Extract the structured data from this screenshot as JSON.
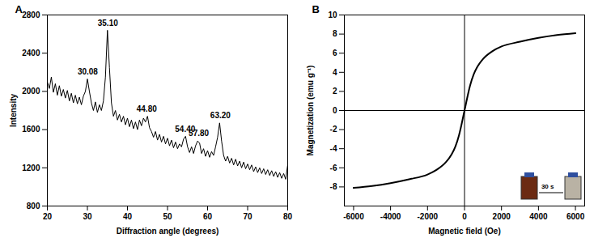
{
  "chart_data": [
    {
      "type": "line",
      "title": "A",
      "x_label": "Diffraction angle (degrees)",
      "y_label": "Intensity",
      "color": "#000000",
      "x": [
        20,
        20.5,
        21,
        21.5,
        22,
        22.5,
        23,
        23.5,
        24,
        24.5,
        25,
        25.5,
        26,
        26.5,
        27,
        27.5,
        28,
        28.5,
        29,
        29.5,
        30,
        30.5,
        31,
        31.5,
        32,
        32.5,
        33,
        33.5,
        34,
        34.5,
        35,
        35.5,
        36,
        36.5,
        37,
        37.5,
        38,
        38.5,
        39,
        39.5,
        40,
        40.5,
        41,
        41.5,
        42,
        42.5,
        43,
        43.5,
        44,
        44.5,
        45,
        45.5,
        46,
        46.5,
        47,
        47.5,
        48,
        48.5,
        49,
        49.5,
        50,
        50.5,
        51,
        51.5,
        52,
        52.5,
        53,
        53.5,
        54,
        54.5,
        55,
        55.5,
        56,
        56.5,
        57,
        57.5,
        58,
        58.5,
        59,
        59.5,
        60,
        60.5,
        61,
        61.5,
        62,
        62.5,
        63,
        63.5,
        64,
        64.5,
        65,
        65.5,
        66,
        66.5,
        67,
        67.5,
        68,
        68.5,
        69,
        69.5,
        70,
        70.5,
        71,
        71.5,
        72,
        72.5,
        73,
        73.5,
        74,
        74.5,
        75,
        75.5,
        76,
        76.5,
        77,
        77.5,
        78,
        78.5,
        79,
        79.5,
        80
      ],
      "values": [
        2100,
        2030,
        2150,
        1990,
        2080,
        1960,
        2060,
        1950,
        2020,
        1930,
        2010,
        1900,
        1980,
        1880,
        1960,
        1870,
        1940,
        1860,
        1950,
        2000,
        2130,
        2000,
        1880,
        1800,
        1890,
        1780,
        1860,
        1800,
        1900,
        2150,
        2640,
        2250,
        1880,
        1740,
        1800,
        1700,
        1760,
        1680,
        1740,
        1650,
        1720,
        1630,
        1700,
        1610,
        1680,
        1600,
        1700,
        1640,
        1720,
        1680,
        1740,
        1620,
        1580,
        1520,
        1580,
        1490,
        1550,
        1470,
        1530,
        1450,
        1510,
        1430,
        1490,
        1410,
        1470,
        1400,
        1450,
        1420,
        1500,
        1530,
        1420,
        1360,
        1420,
        1350,
        1430,
        1480,
        1460,
        1350,
        1400,
        1320,
        1380,
        1310,
        1370,
        1330,
        1420,
        1520,
        1670,
        1480,
        1330,
        1270,
        1320,
        1250,
        1300,
        1230,
        1290,
        1220,
        1270,
        1200,
        1260,
        1190,
        1240,
        1180,
        1230,
        1160,
        1210,
        1150,
        1200,
        1140,
        1190,
        1130,
        1180,
        1120,
        1170,
        1110,
        1160,
        1100,
        1150,
        1090,
        1140,
        1080,
        1230
      ],
      "xlim": [
        20,
        80
      ],
      "xticks": [
        20,
        30,
        40,
        50,
        60,
        70,
        80
      ],
      "ylim": [
        800,
        2800
      ],
      "yticks": [
        800,
        1200,
        1600,
        2000,
        2400,
        2800
      ],
      "annotations": [
        {
          "x": 30.08,
          "y": 2130,
          "label": "30.08"
        },
        {
          "x": 35.1,
          "y": 2640,
          "label": "35.10"
        },
        {
          "x": 44.8,
          "y": 1740,
          "label": "44.80"
        },
        {
          "x": 54.4,
          "y": 1530,
          "label": "54.40"
        },
        {
          "x": 57.8,
          "y": 1480,
          "label": "57.80"
        },
        {
          "x": 63.2,
          "y": 1670,
          "label": "63.20"
        }
      ]
    },
    {
      "type": "line",
      "title": "B",
      "x_label": "Magnetic field (Oe)",
      "y_label": "Magnetization (emu g⁻¹)",
      "color": "#000000",
      "x": [
        -6000,
        -5000,
        -4000,
        -3000,
        -2000,
        -1500,
        -1000,
        -700,
        -500,
        -300,
        -200,
        -100,
        0,
        100,
        200,
        300,
        500,
        700,
        1000,
        1500,
        2000,
        3000,
        4000,
        5000,
        6000
      ],
      "values": [
        -8.1,
        -7.9,
        -7.6,
        -7.2,
        -6.7,
        -6.2,
        -5.4,
        -4.6,
        -3.8,
        -2.6,
        -1.8,
        -0.9,
        0,
        0.9,
        1.8,
        2.6,
        3.8,
        4.6,
        5.4,
        6.2,
        6.7,
        7.2,
        7.6,
        7.9,
        8.1
      ],
      "xlim": [
        -6500,
        6500
      ],
      "xticks": [
        -6000,
        -4000,
        -2000,
        0,
        2000,
        4000,
        6000
      ],
      "ylim": [
        -10,
        10
      ],
      "yticks": [
        -8,
        -6,
        -4,
        -2,
        0,
        2,
        4,
        6,
        8,
        10
      ],
      "annotations": [
        {
          "label": "30 s"
        }
      ]
    }
  ]
}
